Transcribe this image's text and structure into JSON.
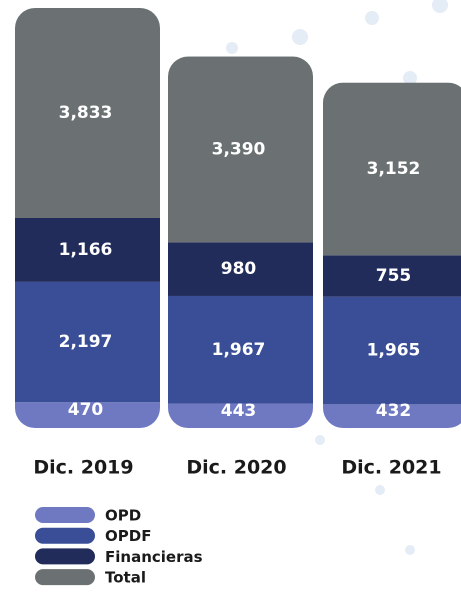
{
  "chart_data": {
    "type": "stacked-bar",
    "categories": [
      "Dic. 2019",
      "Dic. 2020",
      "Dic. 2021"
    ],
    "series": [
      {
        "name": "OPD",
        "color": "#6e79c2",
        "values": [
          470,
          443,
          432
        ],
        "value_labels": [
          "470",
          "443",
          "432"
        ]
      },
      {
        "name": "OPDF",
        "color": "#3a4e98",
        "values": [
          2197,
          1967,
          1965
        ],
        "value_labels": [
          "2,197",
          "1,967",
          "1,965"
        ]
      },
      {
        "name": "Financieras",
        "color": "#222c5b",
        "values": [
          1166,
          980,
          755
        ],
        "value_labels": [
          "1,166",
          "980",
          "755"
        ]
      },
      {
        "name": "Total",
        "color": "#6b7172",
        "values": [
          3833,
          3390,
          3152
        ],
        "value_labels": [
          "3,833",
          "3,390",
          "3,152"
        ]
      }
    ]
  }
}
